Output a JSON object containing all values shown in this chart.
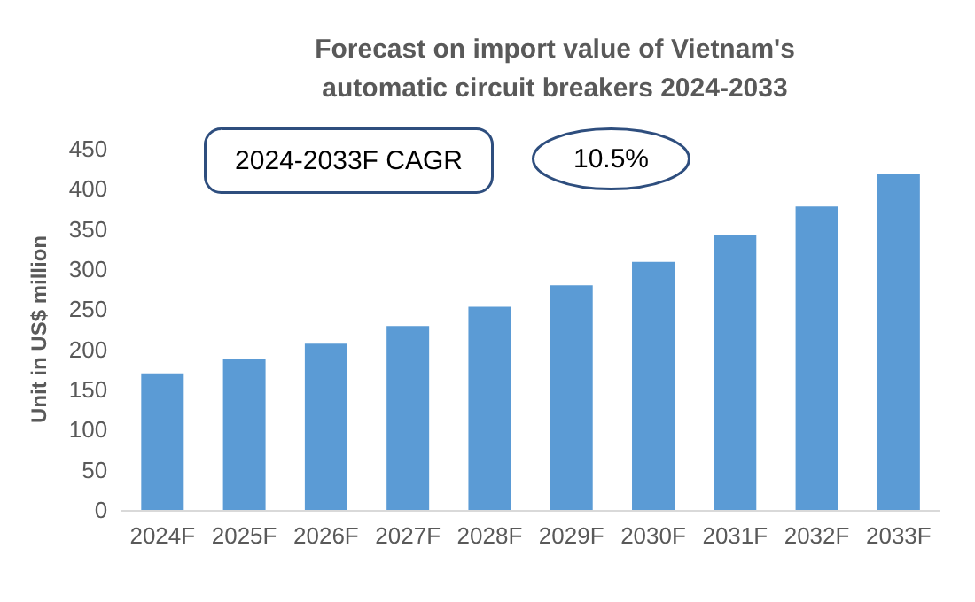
{
  "chart_data": {
    "type": "bar",
    "title": "Forecast on import value of Vietnam's\nautomatic circuit breakers 2024-2033",
    "ylabel": "Unit in US$ million",
    "categories": [
      "2024F",
      "2025F",
      "2026F",
      "2027F",
      "2028F",
      "2029F",
      "2030F",
      "2031F",
      "2032F",
      "2033F"
    ],
    "values": [
      170,
      188,
      207,
      229,
      253,
      280,
      309,
      342,
      378,
      418
    ],
    "color": "#5b9bd5",
    "ylim": [
      0,
      450
    ],
    "yticks": [
      0,
      50,
      100,
      150,
      200,
      250,
      300,
      350,
      400,
      450
    ],
    "grid": false,
    "annotations": [
      "2024-2033F CAGR",
      "10.5%"
    ]
  }
}
